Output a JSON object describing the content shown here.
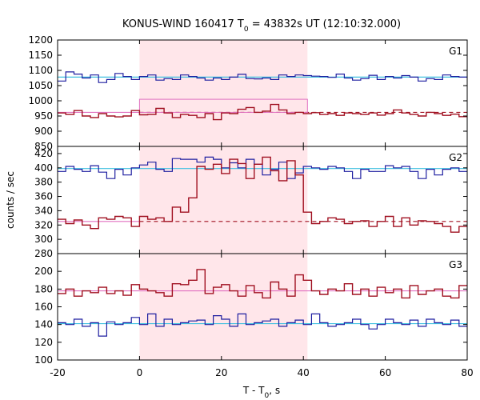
{
  "chart_data": {
    "type": "line",
    "title_prefix": "KONUS-WIND 160417 T",
    "title_sub": "0",
    "title_suffix": " = 43832s UT (12:10:32.000)",
    "xlabel_prefix": "T - T",
    "xlabel_sub": "0",
    "xlabel_suffix": ", s",
    "ylabel": "counts / sec",
    "xlim": [
      -20,
      80
    ],
    "xticks": [
      -20,
      0,
      20,
      40,
      60,
      80
    ],
    "highlight_interval": [
      0,
      41
    ],
    "colors": {
      "blue": "#1f1fa0",
      "red": "#a01020",
      "cyan": "#40c0e0",
      "pink": "#e070c0",
      "highlight": "#ffe6ea"
    },
    "panels": [
      {
        "label": "G1",
        "ylim": [
          850,
          1200
        ],
        "yticks": [
          850,
          900,
          950,
          1000,
          1050,
          1100,
          1150,
          1200
        ],
        "blue_level": 1078,
        "red_bg_level": 962,
        "red_bg_start": 0,
        "pink_level": 1005,
        "pink_x": [
          0,
          41
        ],
        "blue_series": [
          1065,
          1095,
          1088,
          1075,
          1085,
          1060,
          1070,
          1090,
          1080,
          1070,
          1080,
          1085,
          1068,
          1073,
          1070,
          1085,
          1080,
          1075,
          1068,
          1075,
          1070,
          1078,
          1087,
          1073,
          1072,
          1075,
          1070,
          1085,
          1080,
          1085,
          1083,
          1081,
          1080,
          1077,
          1088,
          1075,
          1068,
          1073,
          1084,
          1070,
          1080,
          1075,
          1083,
          1078,
          1065,
          1073,
          1070,
          1085,
          1080,
          1078
        ],
        "red_series": [
          960,
          955,
          968,
          950,
          945,
          958,
          950,
          947,
          950,
          968,
          954,
          955,
          975,
          960,
          945,
          955,
          952,
          945,
          958,
          938,
          960,
          958,
          972,
          978,
          962,
          966,
          988,
          970,
          958,
          962,
          958,
          961,
          955,
          958,
          952,
          960,
          958,
          955,
          960,
          953,
          958,
          970,
          960,
          955,
          950,
          962,
          958,
          952,
          956,
          948
        ]
      },
      {
        "label": "G2",
        "ylim": [
          280,
          430
        ],
        "yticks": [
          280,
          300,
          320,
          340,
          360,
          380,
          400,
          420
        ],
        "blue_level": 399,
        "red_bg_level": 325,
        "red_bg_start": 0,
        "pink_level": 325,
        "pink_x": [
          0,
          41
        ],
        "blue_series": [
          395,
          402,
          398,
          395,
          403,
          394,
          385,
          398,
          390,
          400,
          404,
          408,
          398,
          395,
          413,
          412,
          412,
          408,
          415,
          412,
          400,
          407,
          400,
          412,
          405,
          390,
          398,
          408,
          385,
          393,
          402,
          400,
          398,
          402,
          400,
          395,
          385,
          398,
          395,
          395,
          403,
          400,
          402,
          395,
          385,
          398,
          390,
          398,
          400,
          395
        ],
        "red_series": [
          328,
          322,
          327,
          320,
          315,
          330,
          328,
          332,
          330,
          318,
          332,
          328,
          330,
          325,
          345,
          338,
          358,
          402,
          398,
          405,
          392,
          412,
          406,
          385,
          405,
          415,
          396,
          382,
          410,
          390,
          338,
          322,
          325,
          330,
          328,
          322,
          325,
          326,
          318,
          325,
          332,
          318,
          330,
          320,
          326,
          325,
          322,
          318,
          310,
          318
        ]
      },
      {
        "label": "G3",
        "ylim": [
          100,
          220
        ],
        "yticks": [
          100,
          120,
          140,
          160,
          180,
          200
        ],
        "blue_level": 141,
        "red_bg_level": 178,
        "red_bg_start": -20,
        "pink_level": 0,
        "pink_x": [
          0,
          0
        ],
        "blue_series": [
          142,
          140,
          146,
          138,
          142,
          127,
          143,
          140,
          142,
          148,
          140,
          152,
          138,
          146,
          140,
          142,
          144,
          145,
          140,
          150,
          146,
          138,
          152,
          140,
          142,
          144,
          146,
          138,
          142,
          145,
          140,
          152,
          142,
          138,
          140,
          142,
          146,
          140,
          135,
          140,
          146,
          142,
          140,
          145,
          138,
          146,
          142,
          140,
          145,
          138
        ],
        "red_series": [
          175,
          180,
          172,
          178,
          176,
          182,
          175,
          178,
          173,
          185,
          180,
          178,
          176,
          172,
          186,
          185,
          190,
          202,
          175,
          182,
          185,
          178,
          172,
          184,
          176,
          170,
          188,
          180,
          172,
          196,
          190,
          178,
          174,
          180,
          178,
          186,
          174,
          180,
          172,
          182,
          176,
          180,
          170,
          184,
          174,
          178,
          180,
          172,
          170,
          184
        ]
      }
    ]
  }
}
